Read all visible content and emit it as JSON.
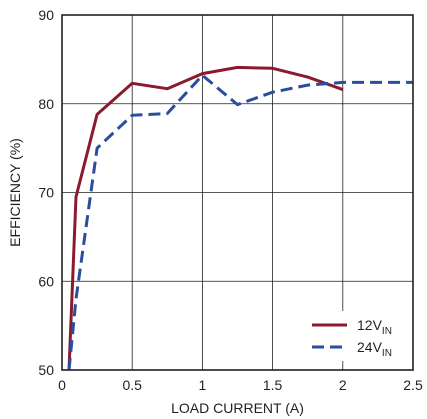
{
  "chart_data": {
    "type": "line",
    "xlabel": "LOAD CURRENT (A)",
    "ylabel": "EFFICIENCY (%)",
    "xlim": [
      0,
      2.5
    ],
    "ylim": [
      50,
      90
    ],
    "xticks": [
      "0",
      "0.5",
      "1",
      "1.5",
      "2",
      "2.5"
    ],
    "yticks": [
      "50",
      "60",
      "70",
      "80",
      "90"
    ],
    "grid": true,
    "legend_position": "bottom-right",
    "series": [
      {
        "name": "12V",
        "name_sub": "IN",
        "color": "#8b1a2e",
        "style": "solid",
        "x": [
          0.05,
          0.1,
          0.25,
          0.5,
          0.75,
          1.0,
          1.25,
          1.5,
          1.75,
          2.0
        ],
        "y": [
          50,
          69.5,
          78.8,
          82.3,
          81.7,
          83.4,
          84.1,
          84.0,
          83.0,
          81.6
        ]
      },
      {
        "name": "24V",
        "name_sub": "IN",
        "color": "#2b4d9e",
        "style": "dashed",
        "x": [
          0.05,
          0.1,
          0.25,
          0.5,
          0.75,
          1.0,
          1.25,
          1.5,
          1.75,
          2.0,
          2.5
        ],
        "y": [
          50,
          58,
          75,
          78.7,
          78.9,
          83.2,
          79.9,
          81.3,
          82.1,
          82.4,
          82.4
        ]
      }
    ]
  }
}
